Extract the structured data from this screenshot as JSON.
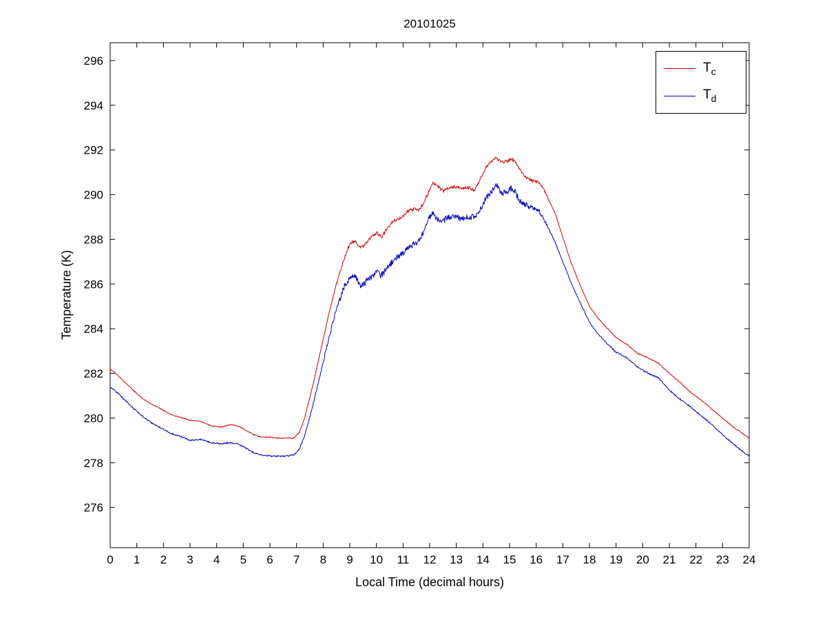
{
  "page": {
    "background": "#ffffff"
  },
  "chart_data": {
    "type": "line",
    "title": "20101025",
    "xlabel": "Local Time (decimal hours)",
    "ylabel": "Temperature (K)",
    "xlim": [
      0,
      24
    ],
    "ylim": [
      274.2,
      296.8
    ],
    "xticks": [
      0,
      1,
      2,
      3,
      4,
      5,
      6,
      7,
      8,
      9,
      10,
      11,
      12,
      13,
      14,
      15,
      16,
      17,
      18,
      19,
      20,
      21,
      22,
      23,
      24
    ],
    "yticks": [
      276,
      278,
      280,
      282,
      284,
      286,
      288,
      290,
      292,
      294,
      296
    ],
    "grid": false,
    "legend": {
      "position": "top-right",
      "entries": [
        {
          "main": "T",
          "sub": "c",
          "color": "#cc0000"
        },
        {
          "main": "T",
          "sub": "d",
          "color": "#0000b4"
        }
      ]
    },
    "series": [
      {
        "name": "Tc",
        "color": "#cc0000",
        "noise": {
          "base": 0.02,
          "window": [
            8.2,
            16.2
          ],
          "window_amp": 0.05
        },
        "x": [
          0,
          0.3,
          0.6,
          1,
          1.3,
          1.6,
          2,
          2.3,
          2.6,
          3,
          3.4,
          3.8,
          4.2,
          4.5,
          4.8,
          5.1,
          5.4,
          5.7,
          6,
          6.3,
          6.6,
          6.9,
          7.1,
          7.3,
          7.6,
          7.9,
          8.2,
          8.5,
          8.8,
          9,
          9.2,
          9.4,
          9.6,
          9.8,
          10,
          10.2,
          10.4,
          10.6,
          10.8,
          11,
          11.2,
          11.4,
          11.6,
          11.8,
          12,
          12.1,
          12.3,
          12.5,
          12.7,
          13,
          13.2,
          13.5,
          13.7,
          13.9,
          14.1,
          14.3,
          14.5,
          14.7,
          14.9,
          15.1,
          15.3,
          15.5,
          15.7,
          15.9,
          16.1,
          16.3,
          16.5,
          16.7,
          17,
          17.3,
          17.6,
          18,
          18.3,
          18.6,
          19,
          19.4,
          19.8,
          20.2,
          20.6,
          21,
          21.4,
          21.8,
          22.2,
          22.6,
          23,
          23.4,
          23.7,
          24
        ],
        "y": [
          282.2,
          281.9,
          281.55,
          281.1,
          280.8,
          280.6,
          280.35,
          280.15,
          280.05,
          279.9,
          279.85,
          279.65,
          279.6,
          279.7,
          279.65,
          279.45,
          279.25,
          279.15,
          279.15,
          279.1,
          279.1,
          279.1,
          279.35,
          280.0,
          281.4,
          283.0,
          284.6,
          286.0,
          287.2,
          287.8,
          287.9,
          287.6,
          287.8,
          288.1,
          288.3,
          288.1,
          288.5,
          288.8,
          288.9,
          289.0,
          289.3,
          289.35,
          289.3,
          289.7,
          290.2,
          290.5,
          290.4,
          290.15,
          290.3,
          290.35,
          290.3,
          290.3,
          290.2,
          290.7,
          291.2,
          291.5,
          291.65,
          291.45,
          291.5,
          291.6,
          291.3,
          290.9,
          290.7,
          290.6,
          290.55,
          290.2,
          289.7,
          289.2,
          288.1,
          287.0,
          286.1,
          285.0,
          284.5,
          284.1,
          283.6,
          283.3,
          282.9,
          282.7,
          282.45,
          282.0,
          281.6,
          281.15,
          280.8,
          280.4,
          280.0,
          279.6,
          279.35,
          279.1
        ]
      },
      {
        "name": "Td",
        "color": "#0000b4",
        "noise": {
          "base": 0.03,
          "window": [
            8.2,
            16.2
          ],
          "window_amp": 0.11
        },
        "x": [
          0,
          0.3,
          0.6,
          1,
          1.3,
          1.6,
          2,
          2.3,
          2.6,
          3,
          3.4,
          3.8,
          4.2,
          4.5,
          4.8,
          5.1,
          5.4,
          5.7,
          6,
          6.3,
          6.6,
          6.9,
          7.1,
          7.3,
          7.6,
          7.9,
          8.2,
          8.5,
          8.8,
          9,
          9.2,
          9.4,
          9.6,
          9.8,
          10,
          10.2,
          10.4,
          10.6,
          10.8,
          11,
          11.2,
          11.4,
          11.6,
          11.8,
          12,
          12.1,
          12.3,
          12.5,
          12.7,
          13,
          13.2,
          13.5,
          13.7,
          13.9,
          14.1,
          14.3,
          14.5,
          14.7,
          14.9,
          15.1,
          15.3,
          15.5,
          15.7,
          15.9,
          16.1,
          16.3,
          16.5,
          16.7,
          17,
          17.3,
          17.6,
          18,
          18.3,
          18.6,
          19,
          19.4,
          19.8,
          20.2,
          20.6,
          21,
          21.4,
          21.8,
          22.2,
          22.6,
          23,
          23.4,
          23.7,
          24
        ],
        "y": [
          281.4,
          281.1,
          280.75,
          280.3,
          280.0,
          279.75,
          279.5,
          279.3,
          279.2,
          279.0,
          279.05,
          278.9,
          278.85,
          278.9,
          278.85,
          278.65,
          278.45,
          278.35,
          278.3,
          278.3,
          278.3,
          278.35,
          278.6,
          279.2,
          280.5,
          282.0,
          283.5,
          284.9,
          285.9,
          286.3,
          286.35,
          285.9,
          286.1,
          286.3,
          286.5,
          286.4,
          286.7,
          287.0,
          287.2,
          287.4,
          287.6,
          287.8,
          287.9,
          288.4,
          289.0,
          289.2,
          288.9,
          288.8,
          289.0,
          289.0,
          288.9,
          289.0,
          289.0,
          289.3,
          289.8,
          290.1,
          290.45,
          290.1,
          290.1,
          290.3,
          289.9,
          289.6,
          289.5,
          289.4,
          289.3,
          288.9,
          288.4,
          287.9,
          287.0,
          286.1,
          285.3,
          284.3,
          283.8,
          283.4,
          282.95,
          282.7,
          282.3,
          282.0,
          281.8,
          281.25,
          280.85,
          280.5,
          280.1,
          279.7,
          279.25,
          278.85,
          278.55,
          278.3
        ]
      }
    ]
  }
}
